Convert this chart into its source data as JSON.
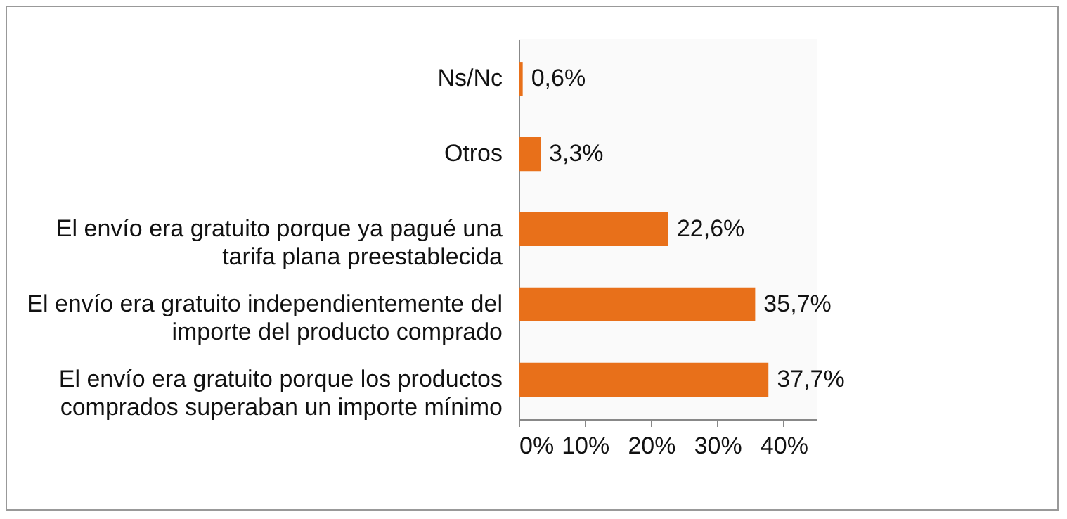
{
  "chart_data": {
    "type": "bar",
    "orientation": "horizontal",
    "categories": [
      "Ns/Nc",
      "Otros",
      "El envío era gratuito porque ya pagué una tarifa plana preestablecida",
      "El envío era gratuito independientemente del importe del producto comprado",
      "El envío era gratuito porque los productos comprados superaban un importe mínimo"
    ],
    "values": [
      0.6,
      3.3,
      22.6,
      35.7,
      37.7
    ],
    "value_labels": [
      "0,6%",
      "3,3%",
      "22,6%",
      "35,7%",
      "37,7%"
    ],
    "color": "#e8701a",
    "xlim": [
      0,
      45
    ],
    "xticks": [
      {
        "value": 0,
        "label": "0%"
      },
      {
        "value": 10,
        "label": "10%"
      },
      {
        "value": 20,
        "label": "20%"
      },
      {
        "value": 30,
        "label": "30%"
      },
      {
        "value": 40,
        "label": "40%"
      }
    ],
    "grid": false
  }
}
